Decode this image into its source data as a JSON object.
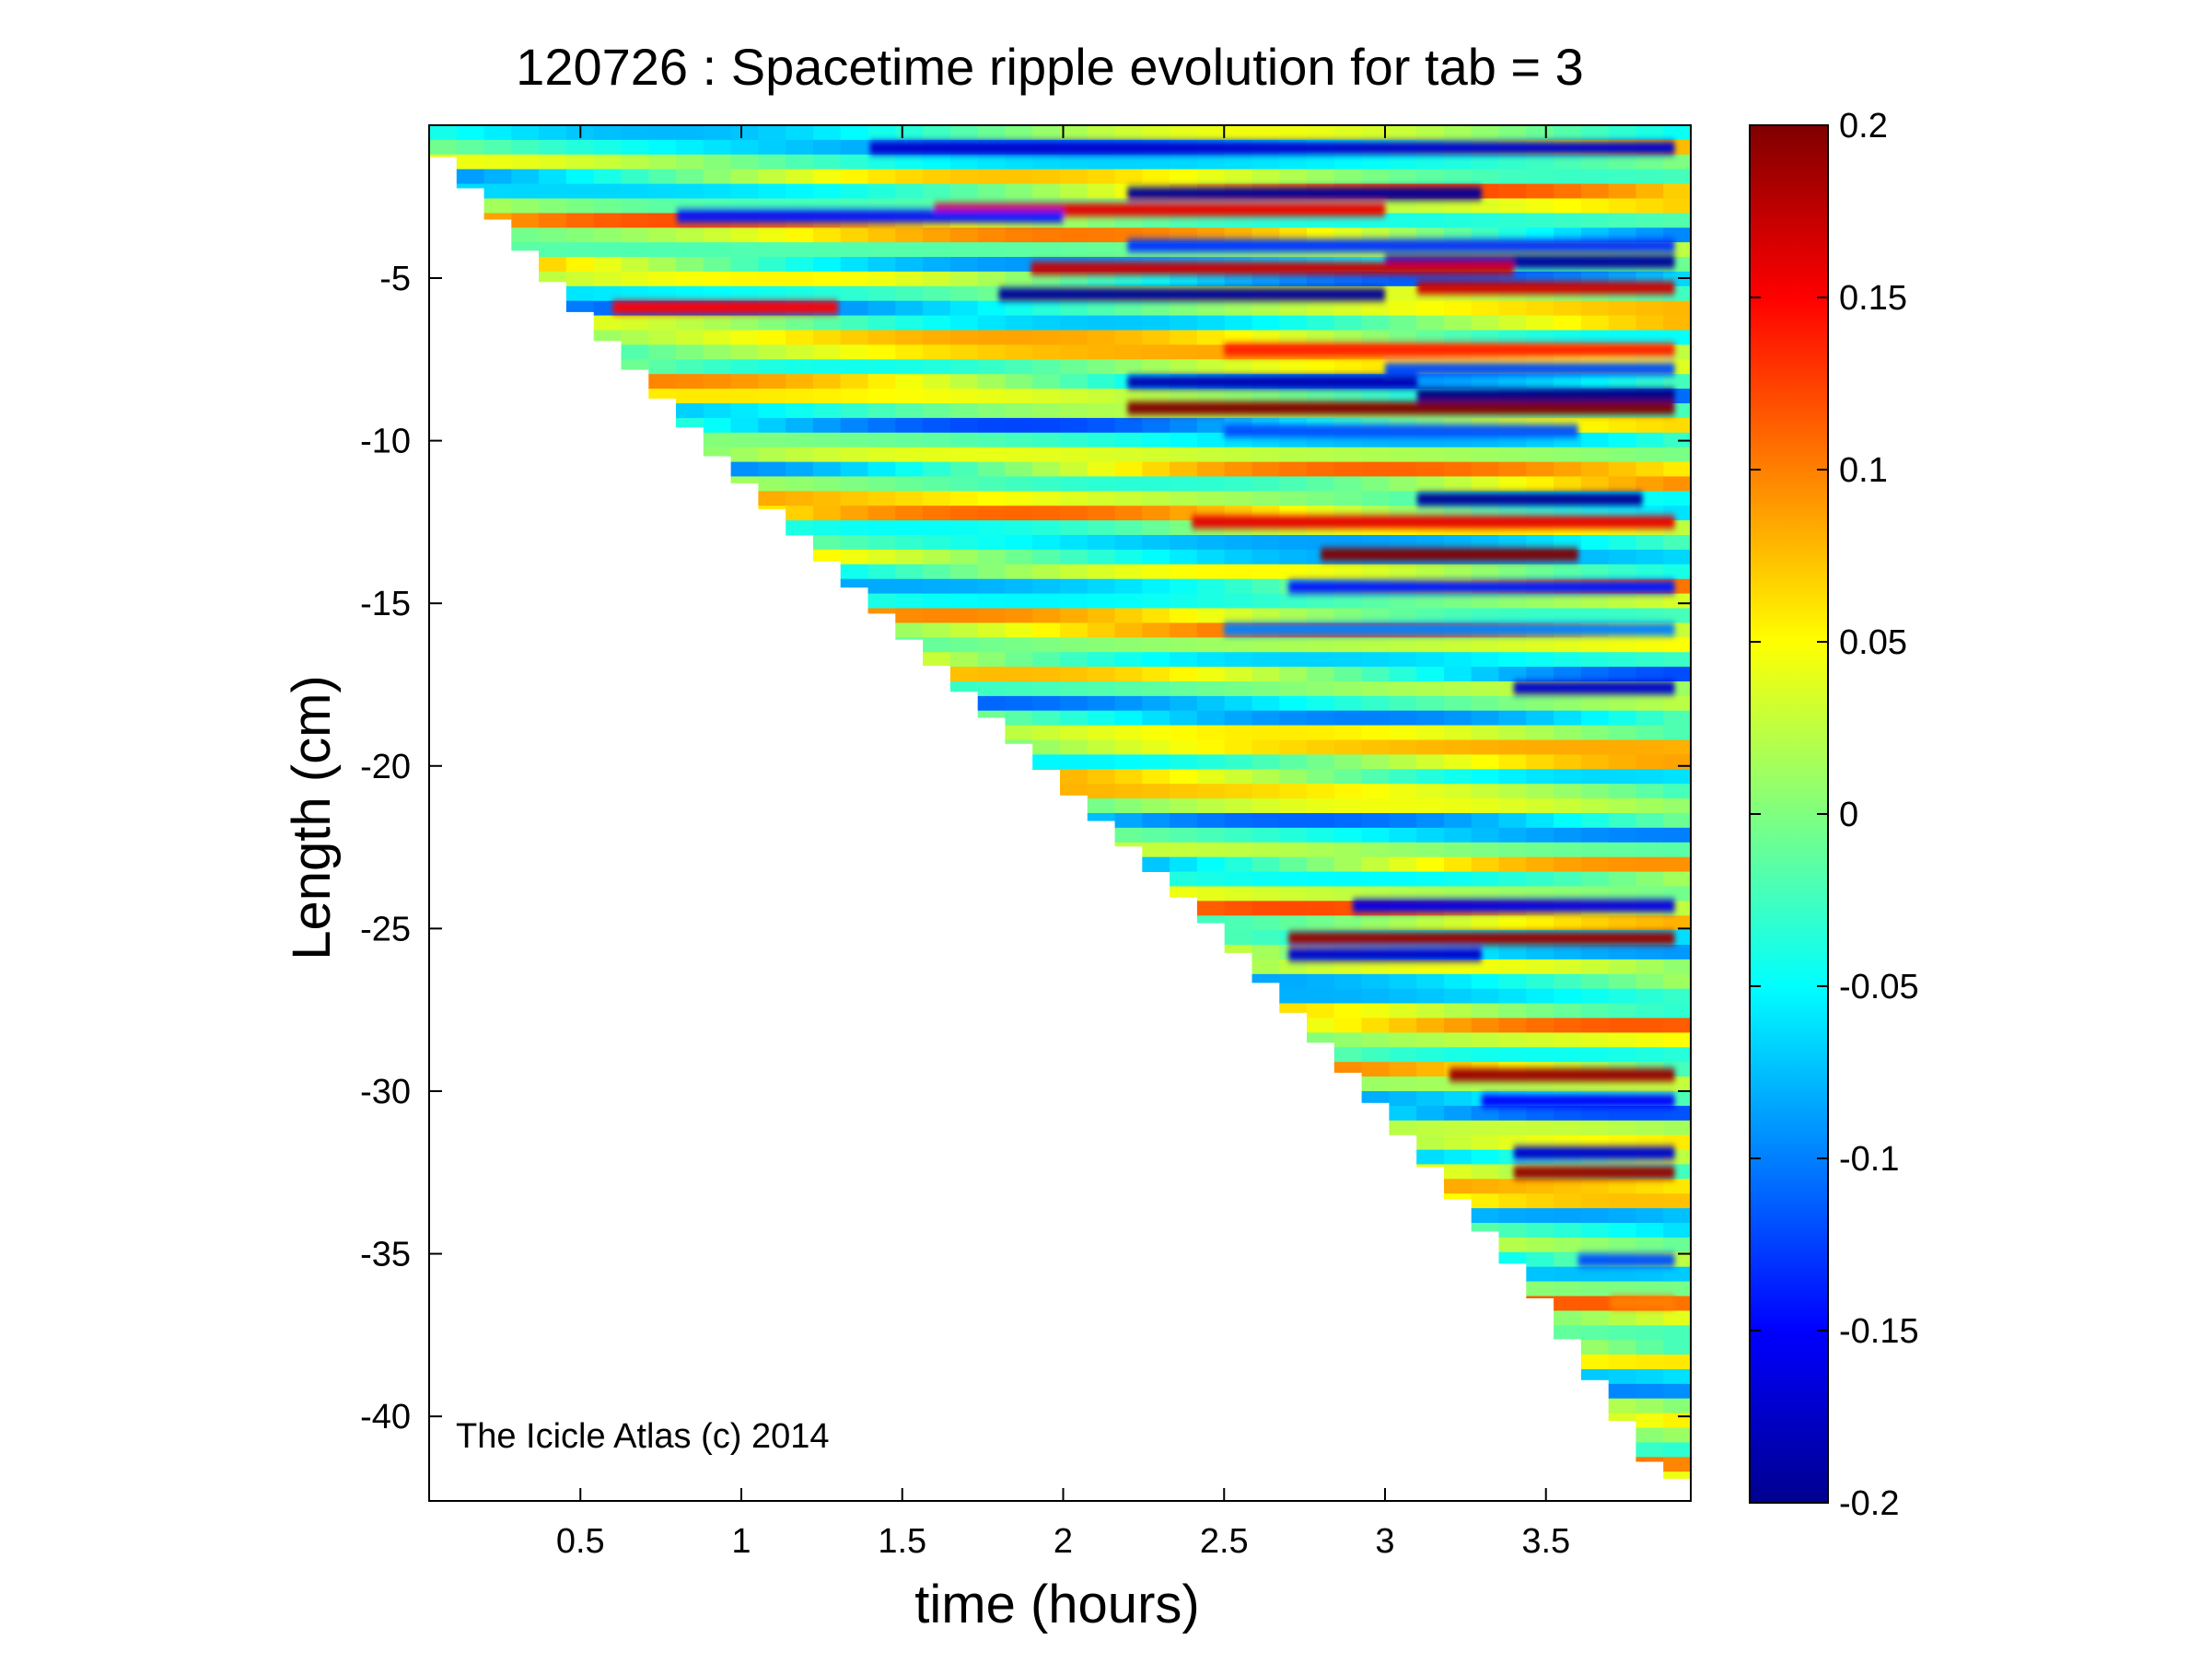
{
  "chart_data": {
    "type": "heatmap",
    "title": "120726 : Spacetime ripple evolution for tab = 3",
    "xlabel": "time (hours)",
    "ylabel": "Length (cm)",
    "annotation": "The Icicle Atlas (c) 2014",
    "xlim": [
      0.03,
      3.95
    ],
    "ylim": [
      -42.6,
      -0.3
    ],
    "xticks": [
      0.5,
      1,
      1.5,
      2,
      2.5,
      3,
      3.5
    ],
    "xtick_labels": [
      "0.5",
      "1",
      "1.5",
      "2",
      "2.5",
      "3",
      "3.5"
    ],
    "yticks": [
      -5,
      -10,
      -15,
      -20,
      -25,
      -30,
      -35,
      -40
    ],
    "ytick_labels": [
      "-5",
      "-10",
      "-15",
      "-20",
      "-25",
      "-30",
      "-35",
      "-40"
    ],
    "colorbar": {
      "colormap": "jet",
      "range": [
        -0.2,
        0.2
      ],
      "ticks": [
        0.2,
        0.15,
        0.1,
        0.05,
        0,
        -0.05,
        -0.1,
        -0.15,
        -0.2
      ],
      "tick_labels": [
        "0.2",
        "0.15",
        "0.1",
        "0.05",
        "0",
        "-0.05",
        "-0.1",
        "-0.15",
        "-0.2"
      ]
    },
    "grid": false,
    "data_edge": {
      "description": "icicle tip position vs time (lower boundary of data region)",
      "time": [
        0.03,
        0.5,
        1.0,
        1.5,
        2.0,
        2.5,
        3.0,
        3.5,
        3.9
      ],
      "length": [
        -0.3,
        -5.6,
        -10.8,
        -15.5,
        -20.2,
        -24.8,
        -30.2,
        -36.0,
        -41.9
      ]
    },
    "bands": [
      {
        "length": -1.0,
        "value": -0.17,
        "t_start": 1.4,
        "t_end": 3.9,
        "note": "blue band near top"
      },
      {
        "length": -2.4,
        "value": -0.19,
        "t_start": 2.2,
        "t_end": 3.3
      },
      {
        "length": -2.9,
        "value": 0.16,
        "t_start": 1.6,
        "t_end": 3.0
      },
      {
        "length": -3.1,
        "value": -0.14,
        "t_start": 0.8,
        "t_end": 2.0
      },
      {
        "length": -4.0,
        "value": -0.13,
        "t_start": 2.2,
        "t_end": 3.9
      },
      {
        "length": -4.5,
        "value": -0.19,
        "t_start": 3.0,
        "t_end": 3.9
      },
      {
        "length": -4.7,
        "value": 0.17,
        "t_start": 1.9,
        "t_end": 3.4
      },
      {
        "length": -5.3,
        "value": 0.17,
        "t_start": 3.1,
        "t_end": 3.9
      },
      {
        "length": -5.5,
        "value": -0.19,
        "t_start": 1.8,
        "t_end": 3.0
      },
      {
        "length": -5.9,
        "value": 0.15,
        "t_start": 0.6,
        "t_end": 1.3
      },
      {
        "length": -7.2,
        "value": 0.14,
        "t_start": 2.5,
        "t_end": 3.9
      },
      {
        "length": -7.8,
        "value": -0.12,
        "t_start": 3.0,
        "t_end": 3.9
      },
      {
        "length": -8.2,
        "value": -0.18,
        "t_start": 2.2,
        "t_end": 3.1
      },
      {
        "length": -8.6,
        "value": -0.2,
        "t_start": 3.1,
        "t_end": 3.9
      },
      {
        "length": -9.0,
        "value": 0.2,
        "t_start": 2.2,
        "t_end": 3.9
      },
      {
        "length": -9.7,
        "value": -0.12,
        "t_start": 2.5,
        "t_end": 3.6
      },
      {
        "length": -11.8,
        "value": -0.19,
        "t_start": 3.1,
        "t_end": 3.8
      },
      {
        "length": -12.5,
        "value": 0.16,
        "t_start": 2.4,
        "t_end": 3.9
      },
      {
        "length": -13.5,
        "value": 0.2,
        "t_start": 2.8,
        "t_end": 3.6
      },
      {
        "length": -14.5,
        "value": -0.14,
        "t_start": 2.7,
        "t_end": 3.9
      },
      {
        "length": -15.8,
        "value": -0.1,
        "t_start": 2.5,
        "t_end": 3.9
      },
      {
        "length": -17.6,
        "value": -0.17,
        "t_start": 3.4,
        "t_end": 3.9
      },
      {
        "length": -24.3,
        "value": -0.16,
        "t_start": 2.9,
        "t_end": 3.9
      },
      {
        "length": -25.3,
        "value": 0.19,
        "t_start": 2.7,
        "t_end": 3.9
      },
      {
        "length": -25.8,
        "value": -0.17,
        "t_start": 2.7,
        "t_end": 3.3
      },
      {
        "length": -29.5,
        "value": 0.19,
        "t_start": 3.2,
        "t_end": 3.9
      },
      {
        "length": -30.3,
        "value": -0.15,
        "t_start": 3.3,
        "t_end": 3.9
      },
      {
        "length": -31.9,
        "value": -0.17,
        "t_start": 3.4,
        "t_end": 3.9
      },
      {
        "length": -32.5,
        "value": 0.19,
        "t_start": 3.4,
        "t_end": 3.9
      },
      {
        "length": -35.2,
        "value": -0.12,
        "t_start": 3.6,
        "t_end": 3.9
      },
      {
        "length": -36.5,
        "value": 0.1,
        "t_start": 3.7,
        "t_end": 3.9
      }
    ]
  }
}
